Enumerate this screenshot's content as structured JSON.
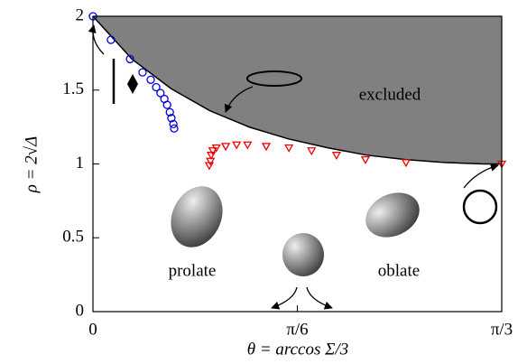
{
  "chart_data": {
    "type": "scatter",
    "xlabel": "θ = arccos Σ/3",
    "ylabel": "ρ = 2√Δ",
    "annotations": [
      "excluded",
      "prolate",
      "oblate"
    ],
    "xlim": [
      0,
      1.0472
    ],
    "ylim": [
      0,
      2
    ],
    "xticks": [
      {
        "value": 0,
        "label": "0"
      },
      {
        "value": 0.5236,
        "label": "π/6"
      },
      {
        "value": 1.0472,
        "label": "π/3"
      }
    ],
    "yticks": [
      0,
      0.5,
      1,
      1.5,
      2
    ],
    "series": [
      {
        "marker": "line",
        "color": "#000000",
        "x": [
          0,
          0.1,
          0.2,
          0.3,
          0.4,
          0.5,
          0.6,
          0.7,
          0.8,
          0.9,
          1.0,
          1.0472
        ],
        "values": [
          2,
          1.71,
          1.51,
          1.36,
          1.25,
          1.17,
          1.11,
          1.06,
          1.03,
          1.01,
          1.0,
          1.0
        ]
      },
      {
        "marker": "circle",
        "color": "#0000dd",
        "x": [
          0,
          0.046,
          0.095,
          0.127,
          0.148,
          0.162,
          0.173,
          0.183,
          0.19,
          0.197,
          0.201,
          0.206,
          0.208
        ],
        "values": [
          2,
          1.84,
          1.71,
          1.62,
          1.57,
          1.52,
          1.48,
          1.44,
          1.4,
          1.35,
          1.31,
          1.27,
          1.24
        ]
      },
      {
        "marker": "triangle",
        "color": "#ee0000",
        "x": [
          0.298,
          0.301,
          0.303,
          0.307,
          0.316,
          0.34,
          0.368,
          0.396,
          0.444,
          0.502,
          0.56,
          0.624,
          0.698,
          0.802,
          1.0472
        ],
        "values": [
          0.99,
          1.02,
          1.06,
          1.09,
          1.11,
          1.12,
          1.13,
          1.13,
          1.12,
          1.11,
          1.09,
          1.06,
          1.03,
          1.01,
          1.0
        ]
      }
    ]
  }
}
